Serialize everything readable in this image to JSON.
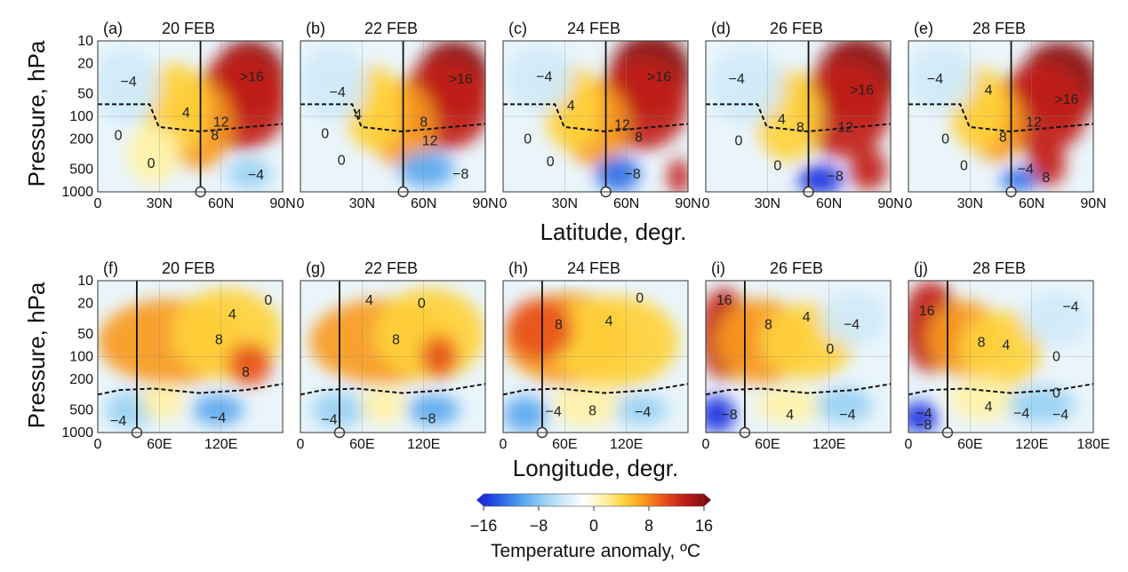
{
  "chart_data": {
    "type": "heatmap",
    "figure_description_rows": [
      "latitude-height",
      "longitude-height"
    ],
    "variable": "Temperature anomaly",
    "units": "°C",
    "y_axis": {
      "label": "Pressure, hPa",
      "scale": "log",
      "range": [
        1000,
        10
      ],
      "ticks": [
        10,
        20,
        50,
        100,
        200,
        500,
        1000
      ]
    },
    "rows": [
      {
        "x_axis_label": "Latitude, degr.",
        "x_range": [
          0,
          90
        ],
        "x_ticks": [
          0,
          30,
          60,
          90
        ],
        "x_tick_labels": [
          "0",
          "30N",
          "60N",
          "90N"
        ],
        "x_tick_labels_last": [
          "0",
          "30N",
          "60N",
          "90N"
        ],
        "marker_x": 50,
        "panels": [
          {
            "id": "(a)",
            "date": "20 FEB",
            "labels": [
              {
                "t": "−4",
                "x": 15,
                "p": 35
              },
              {
                "t": "4",
                "x": 43,
                "p": 90
              },
              {
                "t": "0",
                "x": 10,
                "p": 180
              },
              {
                "t": "0",
                "x": 26,
                "p": 420
              },
              {
                "t": ">16",
                "x": 75,
                "p": 30
              },
              {
                "t": "12",
                "x": 60,
                "p": 120
              },
              {
                "t": "8",
                "x": 57,
                "p": 180
              },
              {
                "t": "−4",
                "x": 77,
                "p": 600
              }
            ]
          },
          {
            "id": "(b)",
            "date": "22 FEB",
            "labels": [
              {
                "t": "−4",
                "x": 18,
                "p": 48
              },
              {
                "t": "4",
                "x": 28,
                "p": 95
              },
              {
                "t": "0",
                "x": 12,
                "p": 170
              },
              {
                "t": "0",
                "x": 20,
                "p": 380
              },
              {
                "t": ">16",
                "x": 78,
                "p": 32
              },
              {
                "t": "8",
                "x": 60,
                "p": 120
              },
              {
                "t": "12",
                "x": 63,
                "p": 210
              },
              {
                "t": "−8",
                "x": 78,
                "p": 580
              }
            ]
          },
          {
            "id": "(c)",
            "date": "24 FEB",
            "labels": [
              {
                "t": "−4",
                "x": 20,
                "p": 30
              },
              {
                "t": "4",
                "x": 33,
                "p": 72
              },
              {
                "t": "0",
                "x": 12,
                "p": 200
              },
              {
                "t": "0",
                "x": 23,
                "p": 400
              },
              {
                "t": ">16",
                "x": 76,
                "p": 30
              },
              {
                "t": "12",
                "x": 58,
                "p": 130
              },
              {
                "t": "8",
                "x": 66,
                "p": 190
              },
              {
                "t": "−8",
                "x": 63,
                "p": 580
              }
            ]
          },
          {
            "id": "(d)",
            "date": "26 FEB",
            "labels": [
              {
                "t": "−4",
                "x": 15,
                "p": 32
              },
              {
                "t": "4",
                "x": 37,
                "p": 110
              },
              {
                "t": "8",
                "x": 46,
                "p": 140
              },
              {
                "t": "0",
                "x": 16,
                "p": 210
              },
              {
                "t": "0",
                "x": 35,
                "p": 450
              },
              {
                "t": ">16",
                "x": 76,
                "p": 45
              },
              {
                "t": "12",
                "x": 68,
                "p": 140
              },
              {
                "t": "−8",
                "x": 63,
                "p": 620
              }
            ]
          },
          {
            "id": "(e)",
            "date": "28 FEB",
            "labels": [
              {
                "t": "−4",
                "x": 13,
                "p": 32
              },
              {
                "t": "4",
                "x": 39,
                "p": 45
              },
              {
                "t": "8",
                "x": 46,
                "p": 190
              },
              {
                "t": "0",
                "x": 18,
                "p": 200
              },
              {
                "t": "0",
                "x": 27,
                "p": 450
              },
              {
                "t": ">16",
                "x": 77,
                "p": 60
              },
              {
                "t": "12",
                "x": 61,
                "p": 120
              },
              {
                "t": "−4",
                "x": 57,
                "p": 500
              },
              {
                "t": "8",
                "x": 67,
                "p": 650
              }
            ]
          }
        ]
      },
      {
        "x_axis_label": "Longitude, degr.",
        "x_range": [
          0,
          180
        ],
        "x_ticks": [
          0,
          60,
          120
        ],
        "x_tick_labels": [
          "0",
          "60E",
          "120E"
        ],
        "x_tick_labels_last": [
          "0",
          "60E",
          "120E",
          "180E"
        ],
        "marker_x": 38,
        "panels": [
          {
            "id": "(f)",
            "date": "20 FEB",
            "labels": [
              {
                "t": "0",
                "x": 166,
                "p": 18
              },
              {
                "t": "4",
                "x": 131,
                "p": 28
              },
              {
                "t": "8",
                "x": 118,
                "p": 60
              },
              {
                "t": "8",
                "x": 144,
                "p": 160
              },
              {
                "t": "−4",
                "x": 20,
                "p": 700
              },
              {
                "t": "−4",
                "x": 117,
                "p": 640
              }
            ]
          },
          {
            "id": "(g)",
            "date": "22 FEB",
            "labels": [
              {
                "t": "4",
                "x": 67,
                "p": 18
              },
              {
                "t": "0",
                "x": 118,
                "p": 20
              },
              {
                "t": "8",
                "x": 93,
                "p": 60
              },
              {
                "t": "−4",
                "x": 28,
                "p": 680
              },
              {
                "t": "−8",
                "x": 124,
                "p": 660
              }
            ]
          },
          {
            "id": "(h)",
            "date": "24 FEB",
            "labels": [
              {
                "t": "8",
                "x": 54,
                "p": 38
              },
              {
                "t": "4",
                "x": 103,
                "p": 34
              },
              {
                "t": "0",
                "x": 133,
                "p": 17
              },
              {
                "t": "−4",
                "x": 49,
                "p": 530
              },
              {
                "t": "8",
                "x": 87,
                "p": 520
              },
              {
                "t": "−4",
                "x": 136,
                "p": 540
              }
            ]
          },
          {
            "id": "(i)",
            "date": "26 FEB",
            "labels": [
              {
                "t": "16",
                "x": 18,
                "p": 18
              },
              {
                "t": "8",
                "x": 61,
                "p": 38
              },
              {
                "t": "4",
                "x": 98,
                "p": 30
              },
              {
                "t": "−4",
                "x": 142,
                "p": 38
              },
              {
                "t": "0",
                "x": 121,
                "p": 80
              },
              {
                "t": "−8",
                "x": 23,
                "p": 580
              },
              {
                "t": "4",
                "x": 82,
                "p": 580
              },
              {
                "t": "−4",
                "x": 138,
                "p": 580
              }
            ]
          },
          {
            "id": "(j)",
            "date": "28 FEB",
            "labels": [
              {
                "t": "16",
                "x": 18,
                "p": 25
              },
              {
                "t": "8",
                "x": 71,
                "p": 65
              },
              {
                "t": "4",
                "x": 95,
                "p": 70
              },
              {
                "t": "−4",
                "x": 158,
                "p": 22
              },
              {
                "t": "0",
                "x": 144,
                "p": 100
              },
              {
                "t": "0",
                "x": 144,
                "p": 300
              },
              {
                "t": "−4",
                "x": 15,
                "p": 560
              },
              {
                "t": "−8",
                "x": 15,
                "p": 800
              },
              {
                "t": "4",
                "x": 78,
                "p": 460
              },
              {
                "t": "−4",
                "x": 110,
                "p": 560
              },
              {
                "t": "−4",
                "x": 148,
                "p": 580
              }
            ]
          }
        ]
      }
    ],
    "colorbar": {
      "min": -16,
      "max": 16,
      "ticks": [
        -16,
        -8,
        0,
        8,
        16
      ],
      "tick_labels": [
        "−16",
        "−8",
        "0",
        "8",
        "16"
      ],
      "title": "Temperature anomaly, ºC",
      "colors": [
        "#1a2be0",
        "#2d6de8",
        "#5aa7ef",
        "#97d0f3",
        "#cfeaf8",
        "#ffffff",
        "#fff2a8",
        "#ffd23a",
        "#f89a1c",
        "#e8511b",
        "#c21d1a",
        "#8a0f10"
      ]
    }
  }
}
